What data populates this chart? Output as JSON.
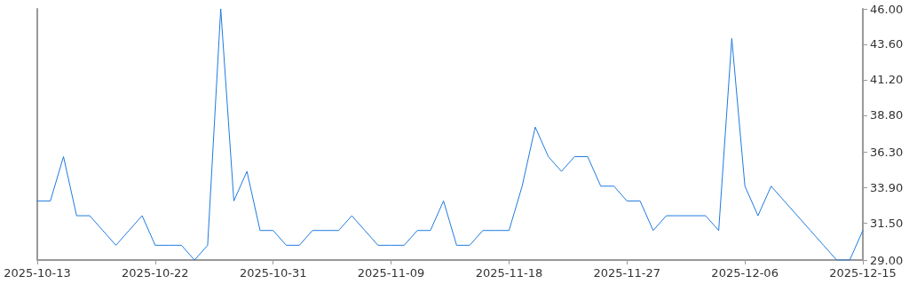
{
  "chart_data": {
    "type": "line",
    "x": [
      "2025-10-13",
      "2025-10-14",
      "2025-10-15",
      "2025-10-16",
      "2025-10-17",
      "2025-10-18",
      "2025-10-19",
      "2025-10-20",
      "2025-10-21",
      "2025-10-22",
      "2025-10-23",
      "2025-10-24",
      "2025-10-25",
      "2025-10-26",
      "2025-10-27",
      "2025-10-28",
      "2025-10-29",
      "2025-10-30",
      "2025-10-31",
      "2025-11-01",
      "2025-11-02",
      "2025-11-03",
      "2025-11-04",
      "2025-11-05",
      "2025-11-06",
      "2025-11-07",
      "2025-11-08",
      "2025-11-09",
      "2025-11-10",
      "2025-11-11",
      "2025-11-12",
      "2025-11-13",
      "2025-11-14",
      "2025-11-15",
      "2025-11-16",
      "2025-11-17",
      "2025-11-18",
      "2025-11-19",
      "2025-11-20",
      "2025-11-21",
      "2025-11-22",
      "2025-11-23",
      "2025-11-24",
      "2025-11-25",
      "2025-11-26",
      "2025-11-27",
      "2025-11-28",
      "2025-11-29",
      "2025-11-30",
      "2025-12-01",
      "2025-12-02",
      "2025-12-03",
      "2025-12-04",
      "2025-12-05",
      "2025-12-06",
      "2025-12-07",
      "2025-12-08",
      "2025-12-09",
      "2025-12-10",
      "2025-12-11",
      "2025-12-12",
      "2025-12-13",
      "2025-12-14",
      "2025-12-15"
    ],
    "series": [
      {
        "color": "#1f7ae0",
        "values": [
          33,
          33,
          36,
          32,
          32,
          31,
          30,
          31,
          32,
          30,
          30,
          30,
          29,
          30,
          46,
          33,
          35,
          31,
          31,
          30,
          30,
          31,
          31,
          31,
          32,
          31,
          30,
          30,
          30,
          31,
          31,
          33,
          30,
          30,
          31,
          31,
          31,
          34,
          38,
          36,
          35,
          36,
          36,
          34,
          34,
          33,
          33,
          31,
          32,
          32,
          32,
          32,
          31,
          44,
          34,
          32,
          34,
          33,
          32,
          31,
          30,
          29,
          29,
          31
        ]
      }
    ],
    "xlim": [
      "2025-10-13",
      "2025-12-15"
    ],
    "xticks": [
      "2025-10-13",
      "2025-10-22",
      "2025-10-31",
      "2025-11-09",
      "2025-11-18",
      "2025-11-27",
      "2025-12-06",
      "2025-12-15"
    ],
    "ylim": [
      29,
      46
    ],
    "yticks": [
      {
        "value": 29,
        "label": "29.00"
      },
      {
        "value": 31.5,
        "label": "31.50"
      },
      {
        "value": 33.9,
        "label": "33.90"
      },
      {
        "value": 36.3,
        "label": "36.30"
      },
      {
        "value": 38.8,
        "label": "38.80"
      },
      {
        "value": 41.2,
        "label": "41.20"
      },
      {
        "value": 43.6,
        "label": "43.60"
      },
      {
        "value": 46,
        "label": "46.00"
      }
    ],
    "grid": false,
    "marker": "none",
    "line_style": "solid"
  }
}
